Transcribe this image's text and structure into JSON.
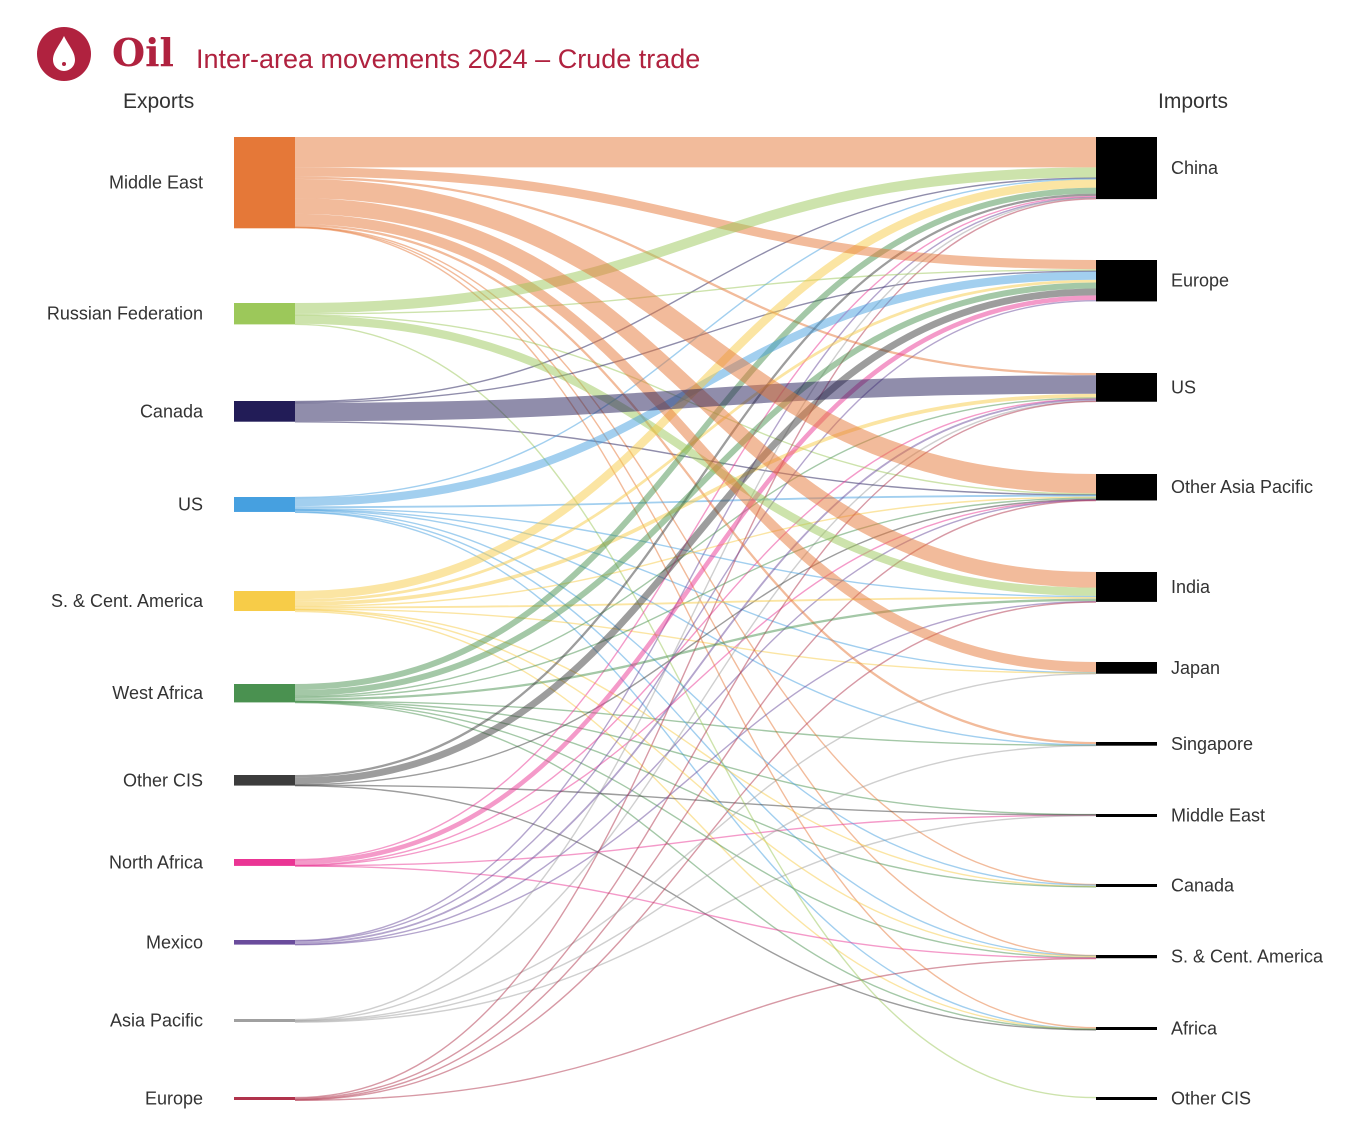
{
  "header": {
    "brand": "Oil",
    "title": "Inter-area movements 2024 – Crude trade",
    "exports_label": "Exports",
    "imports_label": "Imports",
    "accent_color": "#b0223f",
    "logo_icon": "oil-drop-icon"
  },
  "chart_data": {
    "type": "sankey",
    "sources": [
      {
        "name": "Middle East",
        "color": "#e57838"
      },
      {
        "name": "Russian Federation",
        "color": "#9cc85a"
      },
      {
        "name": "Canada",
        "color": "#221c57"
      },
      {
        "name": "US",
        "color": "#46a0e0"
      },
      {
        "name": "S. & Cent. America",
        "color": "#f7cc48"
      },
      {
        "name": "West Africa",
        "color": "#4a9150"
      },
      {
        "name": "Other CIS",
        "color": "#3c3c3c"
      },
      {
        "name": "North Africa",
        "color": "#ea3594"
      },
      {
        "name": "Mexico",
        "color": "#6a4c9c"
      },
      {
        "name": "Asia Pacific",
        "color": "#a0a0a0"
      },
      {
        "name": "Europe",
        "color": "#b0334c"
      }
    ],
    "targets": [
      {
        "name": "China"
      },
      {
        "name": "Europe"
      },
      {
        "name": "US"
      },
      {
        "name": "Other Asia Pacific"
      },
      {
        "name": "India"
      },
      {
        "name": "Japan"
      },
      {
        "name": "Singapore"
      },
      {
        "name": "Middle East"
      },
      {
        "name": "Canada"
      },
      {
        "name": "S. & Cent. America"
      },
      {
        "name": "Africa"
      },
      {
        "name": "Other CIS"
      }
    ],
    "target_color": "#000000",
    "links": [
      {
        "s": 0,
        "t": 0,
        "v": 6.6
      },
      {
        "s": 0,
        "t": 1,
        "v": 2.0
      },
      {
        "s": 0,
        "t": 2,
        "v": 0.5
      },
      {
        "s": 0,
        "t": 3,
        "v": 4.2
      },
      {
        "s": 0,
        "t": 4,
        "v": 3.4
      },
      {
        "s": 0,
        "t": 5,
        "v": 2.2
      },
      {
        "s": 0,
        "t": 6,
        "v": 0.5
      },
      {
        "s": 0,
        "t": 8,
        "v": 0.1
      },
      {
        "s": 0,
        "t": 9,
        "v": 0.05
      },
      {
        "s": 0,
        "t": 10,
        "v": 0.3
      },
      {
        "s": 1,
        "t": 0,
        "v": 2.2
      },
      {
        "s": 1,
        "t": 1,
        "v": 0.3
      },
      {
        "s": 1,
        "t": 3,
        "v": 0.2
      },
      {
        "s": 1,
        "t": 4,
        "v": 1.8
      },
      {
        "s": 1,
        "t": 11,
        "v": 0.15
      },
      {
        "s": 2,
        "t": 0,
        "v": 0.2
      },
      {
        "s": 2,
        "t": 1,
        "v": 0.2
      },
      {
        "s": 2,
        "t": 2,
        "v": 4.0
      },
      {
        "s": 2,
        "t": 3,
        "v": 0.1
      },
      {
        "s": 3,
        "t": 0,
        "v": 0.2
      },
      {
        "s": 3,
        "t": 1,
        "v": 1.8
      },
      {
        "s": 3,
        "t": 3,
        "v": 0.4
      },
      {
        "s": 3,
        "t": 4,
        "v": 0.2
      },
      {
        "s": 3,
        "t": 5,
        "v": 0.1
      },
      {
        "s": 3,
        "t": 6,
        "v": 0.1
      },
      {
        "s": 3,
        "t": 8,
        "v": 0.3
      },
      {
        "s": 3,
        "t": 9,
        "v": 0.1
      },
      {
        "s": 3,
        "t": 10,
        "v": 0.05
      },
      {
        "s": 4,
        "t": 0,
        "v": 1.8
      },
      {
        "s": 4,
        "t": 1,
        "v": 0.6
      },
      {
        "s": 4,
        "t": 2,
        "v": 0.8
      },
      {
        "s": 4,
        "t": 3,
        "v": 0.2
      },
      {
        "s": 4,
        "t": 4,
        "v": 0.4
      },
      {
        "s": 4,
        "t": 5,
        "v": 0.1
      },
      {
        "s": 4,
        "t": 8,
        "v": 0.1
      },
      {
        "s": 4,
        "t": 9,
        "v": 0.3
      },
      {
        "s": 4,
        "t": 10,
        "v": 0.05
      },
      {
        "s": 5,
        "t": 0,
        "v": 1.3
      },
      {
        "s": 5,
        "t": 1,
        "v": 1.3
      },
      {
        "s": 5,
        "t": 2,
        "v": 0.2
      },
      {
        "s": 5,
        "t": 3,
        "v": 0.3
      },
      {
        "s": 5,
        "t": 4,
        "v": 0.5
      },
      {
        "s": 5,
        "t": 6,
        "v": 0.05
      },
      {
        "s": 5,
        "t": 7,
        "v": 0.05
      },
      {
        "s": 5,
        "t": 8,
        "v": 0.1
      },
      {
        "s": 5,
        "t": 9,
        "v": 0.1
      },
      {
        "s": 5,
        "t": 10,
        "v": 0.1
      },
      {
        "s": 6,
        "t": 0,
        "v": 0.5
      },
      {
        "s": 6,
        "t": 1,
        "v": 1.5
      },
      {
        "s": 6,
        "t": 3,
        "v": 0.1
      },
      {
        "s": 6,
        "t": 7,
        "v": 0.1
      },
      {
        "s": 6,
        "t": 10,
        "v": 0.1
      },
      {
        "s": 7,
        "t": 0,
        "v": 0.2
      },
      {
        "s": 7,
        "t": 1,
        "v": 1.0
      },
      {
        "s": 7,
        "t": 2,
        "v": 0.1
      },
      {
        "s": 7,
        "t": 3,
        "v": 0.05
      },
      {
        "s": 7,
        "t": 7,
        "v": 0.05
      },
      {
        "s": 7,
        "t": 9,
        "v": 0.1
      },
      {
        "s": 8,
        "t": 0,
        "v": 0.1
      },
      {
        "s": 8,
        "t": 1,
        "v": 0.3
      },
      {
        "s": 8,
        "t": 2,
        "v": 0.4
      },
      {
        "s": 8,
        "t": 3,
        "v": 0.1
      },
      {
        "s": 8,
        "t": 4,
        "v": 0.1
      },
      {
        "s": 9,
        "t": 0,
        "v": 0.2
      },
      {
        "s": 9,
        "t": 2,
        "v": 0.05
      },
      {
        "s": 9,
        "t": 5,
        "v": 0.15
      },
      {
        "s": 9,
        "t": 6,
        "v": 0.15
      },
      {
        "s": 9,
        "t": 7,
        "v": 0.05
      },
      {
        "s": 10,
        "t": 0,
        "v": 0.2
      },
      {
        "s": 10,
        "t": 2,
        "v": 0.2
      },
      {
        "s": 10,
        "t": 3,
        "v": 0.1
      },
      {
        "s": 10,
        "t": 4,
        "v": 0.1
      },
      {
        "s": 10,
        "t": 9,
        "v": 0.05
      }
    ]
  }
}
